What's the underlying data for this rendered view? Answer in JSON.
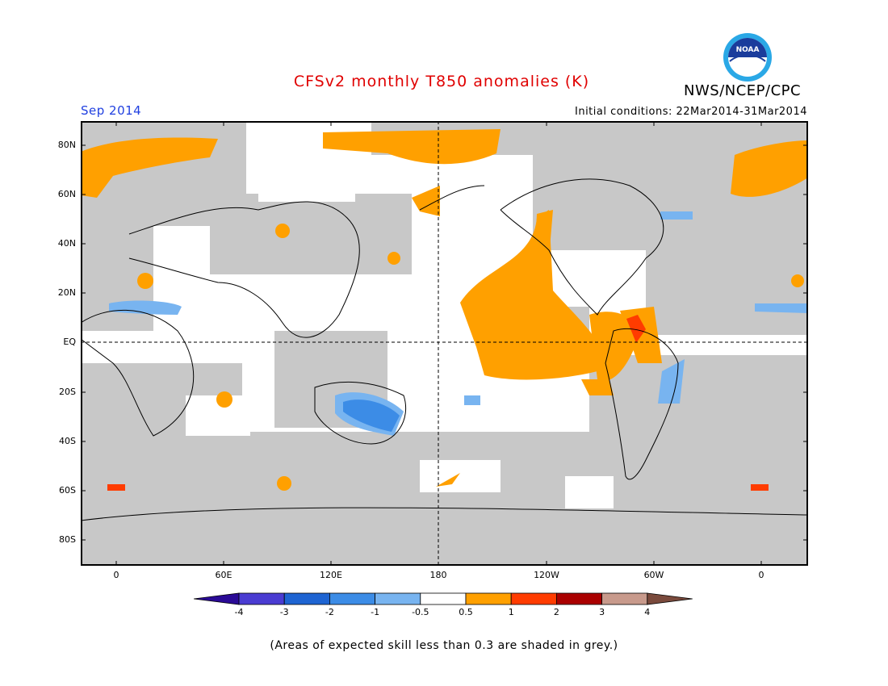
{
  "header": {
    "title": "CFSv2 monthly T850 anomalies (K)",
    "agency": "NWS/NCEP/CPC",
    "month": "Sep 2014",
    "initial_conditions": "Initial conditions: 22Mar2014-31Mar2014",
    "logo_text": "NOAA"
  },
  "map": {
    "lat_labels": [
      "80N",
      "60N",
      "40N",
      "20N",
      "EQ",
      "20S",
      "40S",
      "60S",
      "80S"
    ],
    "lon_labels": [
      "0",
      "60E",
      "120E",
      "180",
      "120W",
      "60W",
      "0"
    ],
    "grey_meaning": "expected skill less than 0.3"
  },
  "colorbar": {
    "labels": [
      "-4",
      "-3",
      "-2",
      "-1",
      "-0.5",
      "0.5",
      "1",
      "2",
      "3",
      "4"
    ],
    "colors": [
      "#2a0a96",
      "#4a3cd2",
      "#1e64d2",
      "#3c8ce6",
      "#78b4f0",
      "#ffffff",
      "#ffa000",
      "#ff3c00",
      "#aa0000",
      "#c89a8c",
      "#7a4a3c"
    ]
  },
  "footnote": "(Areas of expected skill less than 0.3 are shaded in grey.)"
}
